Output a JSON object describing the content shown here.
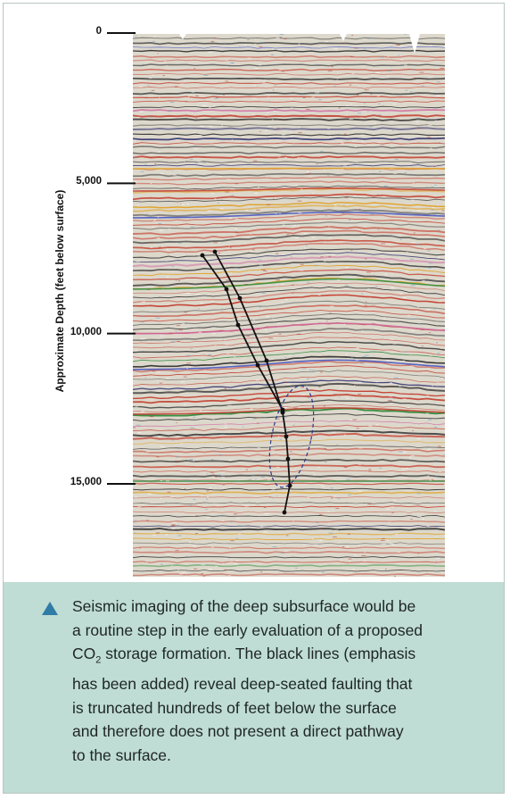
{
  "figure": {
    "y_axis_label": "Approximate Depth (feet below surface)",
    "depth_ticks": [
      {
        "label": "0",
        "depth_ft": 0
      },
      {
        "label": "5,000",
        "depth_ft": 5000
      },
      {
        "label": "10,000",
        "depth_ft": 10000
      },
      {
        "label": "15,000",
        "depth_ft": 15000
      }
    ],
    "depth_range_ft": [
      0,
      17400
    ],
    "fault_color": "#111111",
    "seismic_colors": [
      "#c23a2b",
      "#2a2a6a",
      "#2c8a3b",
      "#e0a020",
      "#d06aa0",
      "#4050c0",
      "#3a3a3a"
    ]
  },
  "caption": {
    "icon": "triangle-bullet-icon",
    "icon_color": "#2f7ca6",
    "background_color": "#bfdcd5",
    "line1": "Seismic imaging of the deep subsurface would be",
    "line2": "a routine step in the early evaluation of a proposed",
    "line3_pre": "CO",
    "line3_sub": "2",
    "line3_post": " storage formation. The black lines (emphasis",
    "line4": "has been added) reveal deep-seated faulting that",
    "line5": "is truncated hundreds of feet below the surface",
    "line6": "and therefore does not present a direct pathway",
    "line7": "to the surface."
  }
}
